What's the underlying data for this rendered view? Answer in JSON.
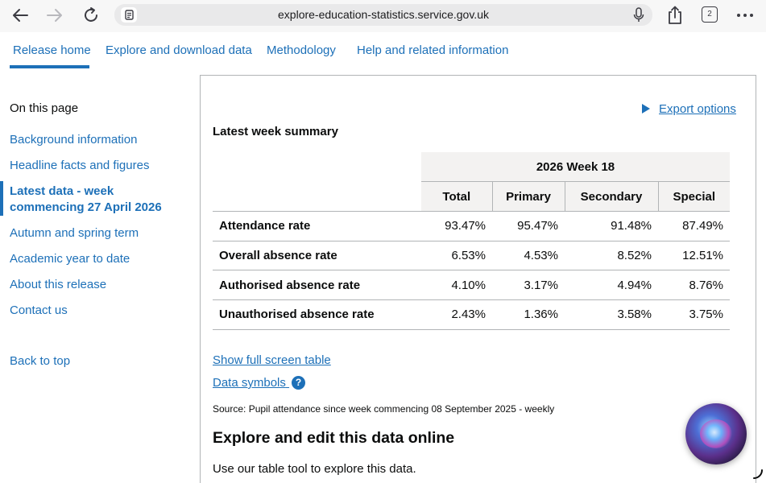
{
  "browser": {
    "url": "explore-education-statistics.service.gov.uk",
    "tab_count": "2"
  },
  "nav": {
    "tabs": [
      {
        "label": "Release home",
        "active": true
      },
      {
        "label": "Explore and download data"
      },
      {
        "label": "Methodology"
      },
      {
        "label": "Help and related information"
      }
    ]
  },
  "sidebar": {
    "heading": "On this page",
    "items": [
      {
        "label": "Background information"
      },
      {
        "label": "Headline facts and figures"
      },
      {
        "label_line1": "Latest data - week",
        "label_line2": "commencing 27 April 2026",
        "active": true
      },
      {
        "label": "Autumn and spring term"
      },
      {
        "label": "Academic year to date"
      },
      {
        "label": "About this release"
      },
      {
        "label": "Contact us"
      }
    ],
    "back_to_top": "Back to top"
  },
  "main": {
    "export_options": "Export options",
    "summary_title": "Latest week summary",
    "table": {
      "group_header": "2026 Week 18",
      "columns": [
        "Total",
        "Primary",
        "Secondary",
        "Special"
      ],
      "rows": [
        {
          "label": "Attendance rate",
          "values": [
            "93.47%",
            "95.47%",
            "91.48%",
            "87.49%"
          ]
        },
        {
          "label": "Overall absence rate",
          "values": [
            "6.53%",
            "4.53%",
            "8.52%",
            "12.51%"
          ]
        },
        {
          "label": "Authorised absence rate",
          "values": [
            "4.10%",
            "3.17%",
            "4.94%",
            "8.76%"
          ]
        },
        {
          "label": "Unauthorised absence rate",
          "values": [
            "2.43%",
            "1.36%",
            "3.58%",
            "3.75%"
          ]
        }
      ]
    },
    "show_full_screen": "Show full screen table",
    "data_symbols": "Data symbols",
    "data_symbols_icon": "?",
    "source": "Source: Pupil attendance since week commencing 08 September 2025 - weekly",
    "explore_heading": "Explore and edit this data online",
    "explore_text": "Use our table tool to explore this data."
  },
  "colors": {
    "link": "#1d70b8",
    "text": "#0b0c0c",
    "table_header_bg": "#f3f2f1",
    "border": "#b1b4b6"
  }
}
